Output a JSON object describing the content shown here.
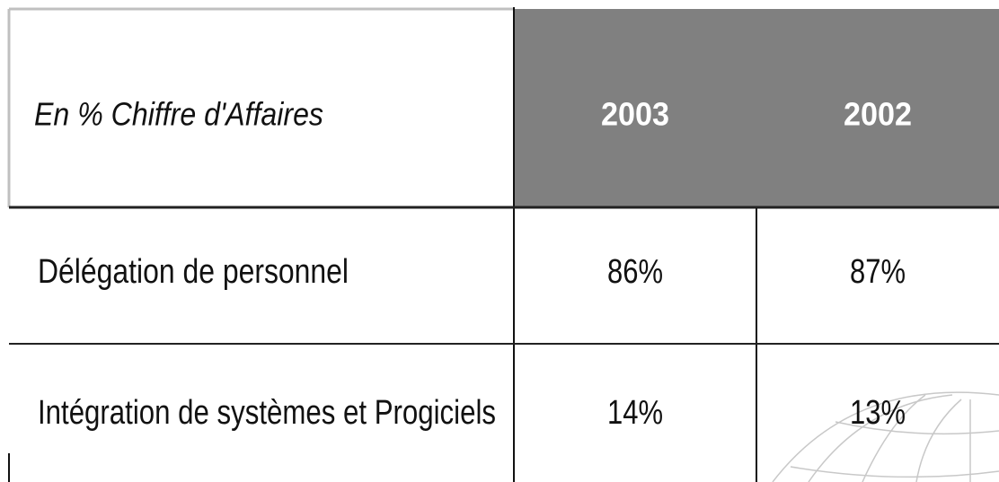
{
  "table": {
    "header": [
      "En  % Chiffre d'Affaires",
      "2003",
      "2002"
    ],
    "rows": [
      [
        "Délégation de personnel",
        "86%",
        "87%"
      ],
      [
        "Intégration de systèmes et Progiciels",
        "14%",
        "13%"
      ]
    ]
  }
}
